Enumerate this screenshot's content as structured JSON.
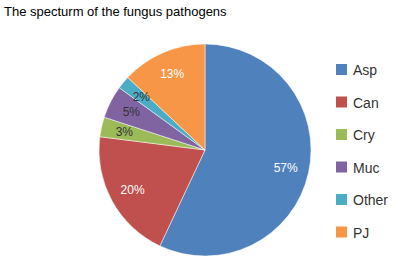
{
  "chart_data": {
    "type": "pie",
    "title": "The specturm of the fungus pathogens",
    "categories": [
      "Asp",
      "Can",
      "Cry",
      "Muc",
      "Other",
      "PJ"
    ],
    "values": [
      57,
      20,
      3,
      5,
      2,
      13
    ],
    "value_labels": [
      "57%",
      "20%",
      "3%",
      "5%",
      "2%",
      "13%"
    ],
    "colors": [
      "#4f81bd",
      "#c0504d",
      "#9bbb59",
      "#8064a2",
      "#4bacc6",
      "#f79646"
    ],
    "data_labels": true,
    "legend": "right"
  }
}
